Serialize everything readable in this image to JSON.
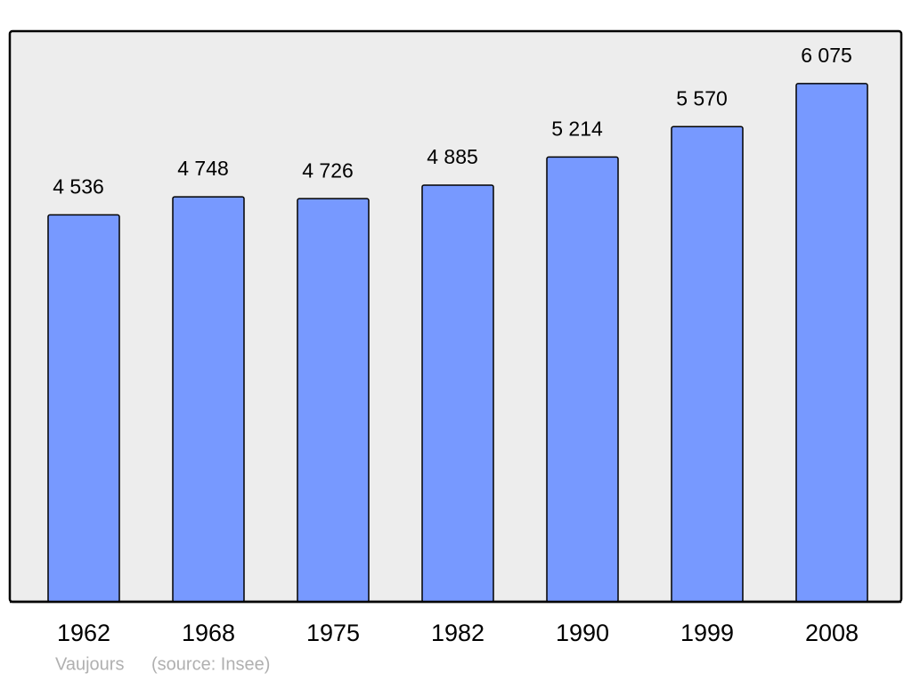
{
  "chart_data": {
    "type": "bar",
    "title": "Vaujours",
    "source": "(source: Insee)",
    "categories": [
      "1962",
      "1968",
      "1975",
      "1982",
      "1990",
      "1999",
      "2008"
    ],
    "values": [
      4536,
      4748,
      4726,
      4885,
      5214,
      5570,
      6075
    ],
    "value_labels": [
      "4 536",
      "4 748",
      "4 726",
      "4 885",
      "5 214",
      "5 570",
      "6 075"
    ],
    "color": "#7799ff",
    "ylim": [
      0,
      6690
    ]
  }
}
